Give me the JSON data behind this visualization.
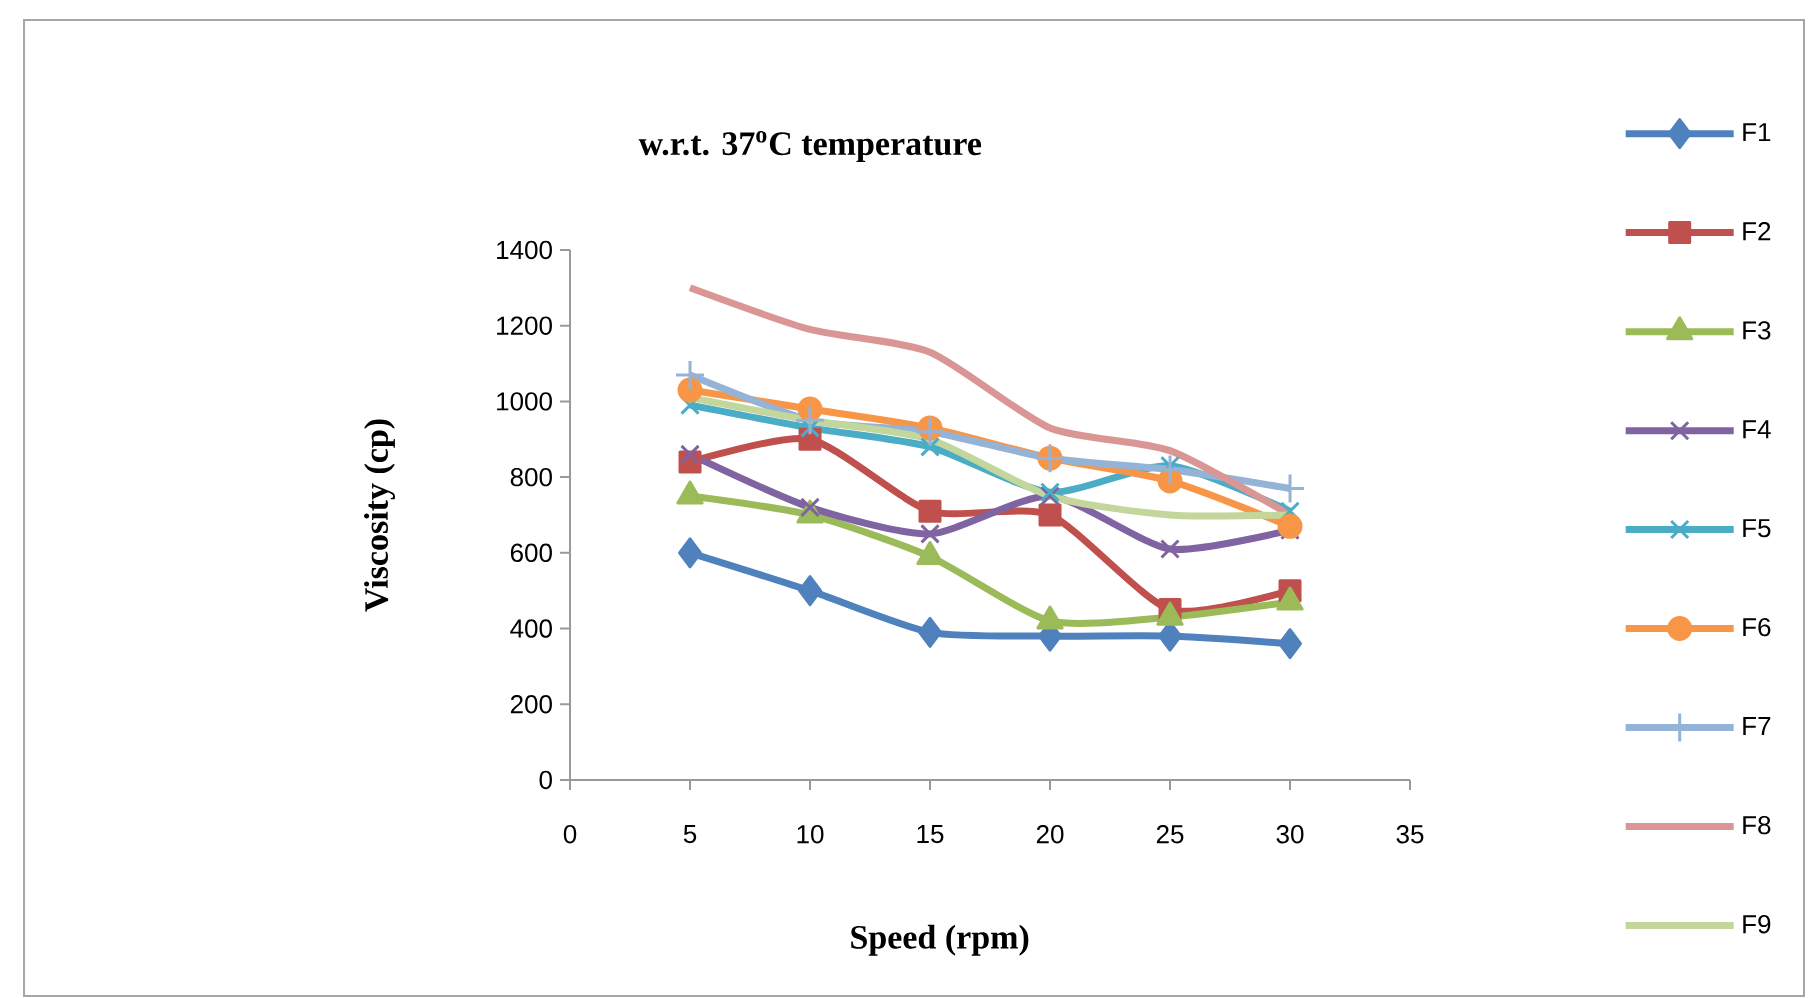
{
  "chart_data": {
    "type": "line",
    "title": "w.r.t. 37$^{o}$C temperature",
    "xlabel": "Speed (rpm)",
    "ylabel": "Viscosity (cp)",
    "x": [
      5,
      10,
      15,
      20,
      25,
      30
    ],
    "xlim": [
      0,
      35
    ],
    "xticks": [
      0,
      5,
      10,
      15,
      20,
      25,
      30,
      35
    ],
    "ylim": [
      0,
      1400
    ],
    "yticks": [
      0,
      200,
      400,
      600,
      800,
      1000,
      1200,
      1400
    ],
    "grid": false,
    "legend": "right",
    "series": [
      {
        "name": "F1",
        "color": "#4f81bd",
        "marker": "diamond",
        "values": [
          600,
          500,
          390,
          380,
          380,
          360
        ]
      },
      {
        "name": "F2",
        "color": "#c0504d",
        "marker": "square",
        "values": [
          840,
          900,
          710,
          700,
          450,
          500
        ]
      },
      {
        "name": "F3",
        "color": "#9bbb59",
        "marker": "triangle",
        "values": [
          750,
          700,
          590,
          420,
          430,
          470
        ]
      },
      {
        "name": "F4",
        "color": "#8064a2",
        "marker": "cross",
        "values": [
          860,
          720,
          650,
          750,
          610,
          660
        ]
      },
      {
        "name": "F5",
        "color": "#4bacc6",
        "marker": "cross",
        "values": [
          990,
          930,
          880,
          760,
          830,
          710
        ]
      },
      {
        "name": "F6",
        "color": "#f79646",
        "marker": "circle",
        "values": [
          1030,
          980,
          930,
          850,
          790,
          670
        ]
      },
      {
        "name": "F7",
        "color": "#95b3d7",
        "marker": "plus",
        "values": [
          1070,
          950,
          920,
          850,
          820,
          770
        ]
      },
      {
        "name": "F8",
        "color": "#d99694",
        "marker": "none",
        "values": [
          1300,
          1190,
          1130,
          930,
          870,
          700
        ]
      },
      {
        "name": "F9",
        "color": "#c3d69b",
        "marker": "none",
        "values": [
          1010,
          950,
          900,
          750,
          700,
          700
        ]
      }
    ]
  }
}
